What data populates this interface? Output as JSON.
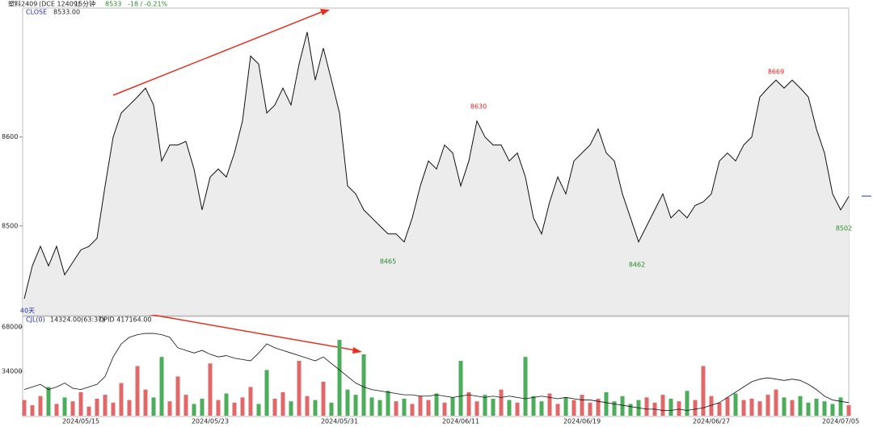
{
  "header": {
    "symbol": "塑料2409",
    "contract": "(DCE 12409)",
    "period": "15分钟",
    "last": "8533",
    "change": "-18 / -0.21%"
  },
  "chart_data": [
    {
      "type": "line",
      "title": "CLOSE",
      "readout": "8533.00",
      "color": "#111111",
      "fill": "#ececec",
      "ylim": [
        8400,
        8745
      ],
      "yticks": [
        8500,
        8600
      ],
      "values": [
        8418,
        8455,
        8477,
        8455,
        8477,
        8445,
        8459,
        8473,
        8477,
        8486,
        8545,
        8600,
        8627,
        8636,
        8645,
        8655,
        8636,
        8573,
        8591,
        8591,
        8595,
        8564,
        8518,
        8555,
        8564,
        8555,
        8582,
        8618,
        8691,
        8682,
        8627,
        8636,
        8655,
        8636,
        8682,
        8718,
        8664,
        8700,
        8664,
        8627,
        8545,
        8536,
        8518,
        8509,
        8500,
        8491,
        8491,
        8482,
        8509,
        8545,
        8573,
        8564,
        8591,
        8582,
        8545,
        8573,
        8618,
        8600,
        8591,
        8591,
        8573,
        8582,
        8555,
        8509,
        8491,
        8527,
        8555,
        8536,
        8573,
        8582,
        8591,
        8609,
        8582,
        8573,
        8536,
        8509,
        8482,
        8500,
        8518,
        8536,
        8509,
        8518,
        8509,
        8523,
        8527,
        8536,
        8573,
        8582,
        8573,
        8591,
        8600,
        8645,
        8655,
        8664,
        8655,
        8664,
        8655,
        8645,
        8609,
        8582,
        8536,
        8518,
        8533
      ],
      "annotations": [
        {
          "text": "8630",
          "color": "#e02020"
        },
        {
          "text": "8465",
          "color": "#2a8a2a"
        },
        {
          "text": "8462",
          "color": "#2a8a2a"
        },
        {
          "text": "8669",
          "color": "#e02020"
        },
        {
          "text": "8502",
          "color": "#2a8a2a"
        },
        {
          "text": "40天",
          "color": "#2030a0"
        }
      ]
    },
    {
      "type": "bar",
      "title": "CJL(0)",
      "readout": "14324.00(63:37)",
      "opid_label": "OPID 417164.00",
      "up_color": "#e06868",
      "down_color": "#4cae5a",
      "line_color": "#111111",
      "ylim": [
        0,
        76000
      ],
      "yticks": [
        34000,
        68000
      ],
      "categories": [
        null,
        null,
        null,
        null,
        null,
        null,
        null,
        "2024/05/15",
        null,
        null,
        null,
        null,
        null,
        null,
        null,
        null,
        null,
        null,
        null,
        null,
        null,
        null,
        null,
        "2024/05/23",
        null,
        null,
        null,
        null,
        null,
        null,
        null,
        null,
        null,
        null,
        null,
        null,
        null,
        null,
        null,
        "2024/05/31",
        null,
        null,
        null,
        null,
        null,
        null,
        null,
        null,
        null,
        null,
        null,
        null,
        null,
        null,
        "2024/06/11",
        null,
        null,
        null,
        null,
        null,
        null,
        null,
        null,
        null,
        null,
        null,
        null,
        null,
        null,
        "2024/06/19",
        null,
        null,
        null,
        null,
        null,
        null,
        null,
        null,
        null,
        null,
        null,
        null,
        null,
        null,
        null,
        "2024/06/27",
        null,
        null,
        null,
        null,
        null,
        null,
        null,
        null,
        null,
        null,
        null,
        null,
        null,
        null,
        null,
        "2024/07/05",
        null
      ],
      "values": [
        12000,
        8000,
        15000,
        22000,
        9000,
        14000,
        11000,
        18000,
        7000,
        13000,
        16000,
        10000,
        25000,
        12000,
        38000,
        20000,
        14000,
        45000,
        11000,
        30000,
        16000,
        9000,
        13000,
        40000,
        12000,
        17000,
        10000,
        14000,
        22000,
        9000,
        35000,
        13000,
        18000,
        11000,
        42000,
        15000,
        12000,
        26000,
        10000,
        58000,
        20000,
        16000,
        47000,
        14000,
        12000,
        19000,
        11000,
        13000,
        9000,
        15000,
        12000,
        17000,
        10000,
        14000,
        42000,
        18000,
        11000,
        16000,
        13000,
        20000,
        12000,
        10000,
        45000,
        15000,
        11000,
        17000,
        9000,
        14000,
        12000,
        16000,
        10000,
        13000,
        18000,
        11000,
        15000,
        9000,
        12000,
        14000,
        10000,
        16000,
        13000,
        11000,
        19000,
        12000,
        38000,
        15000,
        10000,
        14000,
        17000,
        12000,
        13000,
        11000,
        16000,
        20000,
        14000,
        12000,
        15000,
        10000,
        13000,
        11000,
        9000,
        14000,
        8000
      ],
      "opid_values": [
        20000,
        22000,
        24000,
        20000,
        22000,
        25000,
        21000,
        20000,
        22000,
        24000,
        30000,
        45000,
        55000,
        60000,
        62000,
        63000,
        63000,
        62000,
        60000,
        52000,
        50000,
        48000,
        50000,
        47000,
        45000,
        46000,
        44000,
        43000,
        42000,
        48000,
        55000,
        52000,
        50000,
        48000,
        46000,
        44000,
        42000,
        45000,
        40000,
        35000,
        30000,
        25000,
        22000,
        20000,
        19000,
        18000,
        17000,
        16000,
        16000,
        15000,
        15000,
        16000,
        15000,
        14000,
        15000,
        16000,
        15000,
        14000,
        15000,
        14000,
        15000,
        14000,
        13000,
        14000,
        15000,
        14000,
        13000,
        14000,
        13000,
        12000,
        12000,
        11000,
        10000,
        9000,
        8000,
        7000,
        6000,
        5000,
        5000,
        4000,
        4000,
        5000,
        4000,
        5000,
        6000,
        8000,
        10000,
        14000,
        18000,
        22000,
        26000,
        28000,
        29000,
        28000,
        27000,
        28000,
        27000,
        24000,
        20000,
        15000,
        12000,
        11000,
        10000
      ]
    }
  ]
}
